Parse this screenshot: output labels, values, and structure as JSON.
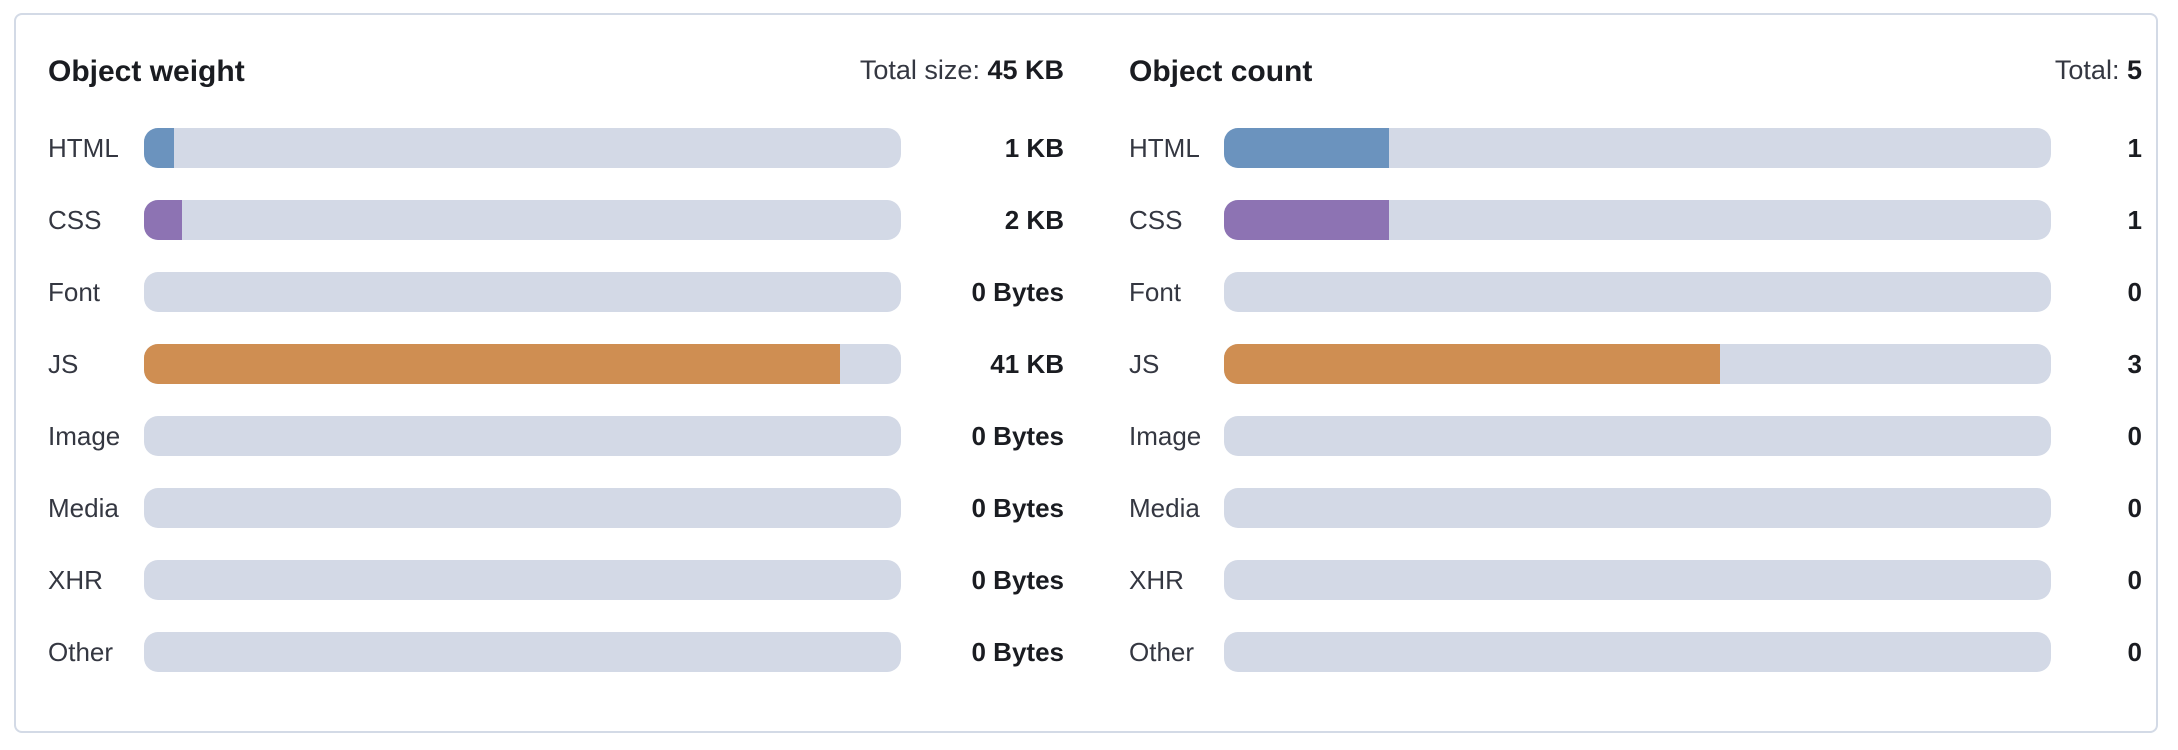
{
  "colors": {
    "HTML": "#6b93be",
    "CSS": "#8d73b3",
    "JS": "#cf8e52",
    "track": "#d3d9e6"
  },
  "weight": {
    "title": "Object weight",
    "total_label": "Total size:",
    "total_value": "45 KB",
    "rows": [
      {
        "label": "HTML",
        "value": "1 KB",
        "fill_percent": 4
      },
      {
        "label": "CSS",
        "value": "2 KB",
        "fill_percent": 5
      },
      {
        "label": "Font",
        "value": "0 Bytes",
        "fill_percent": 0
      },
      {
        "label": "JS",
        "value": "41 KB",
        "fill_percent": 92
      },
      {
        "label": "Image",
        "value": "0 Bytes",
        "fill_percent": 0
      },
      {
        "label": "Media",
        "value": "0 Bytes",
        "fill_percent": 0
      },
      {
        "label": "XHR",
        "value": "0 Bytes",
        "fill_percent": 0
      },
      {
        "label": "Other",
        "value": "0 Bytes",
        "fill_percent": 0
      }
    ]
  },
  "count": {
    "title": "Object count",
    "total_label": "Total:",
    "total_value": "5",
    "rows": [
      {
        "label": "HTML",
        "value": "1",
        "fill_percent": 20
      },
      {
        "label": "CSS",
        "value": "1",
        "fill_percent": 20
      },
      {
        "label": "Font",
        "value": "0",
        "fill_percent": 0
      },
      {
        "label": "JS",
        "value": "3",
        "fill_percent": 60
      },
      {
        "label": "Image",
        "value": "0",
        "fill_percent": 0
      },
      {
        "label": "Media",
        "value": "0",
        "fill_percent": 0
      },
      {
        "label": "XHR",
        "value": "0",
        "fill_percent": 0
      },
      {
        "label": "Other",
        "value": "0",
        "fill_percent": 0
      }
    ]
  }
}
